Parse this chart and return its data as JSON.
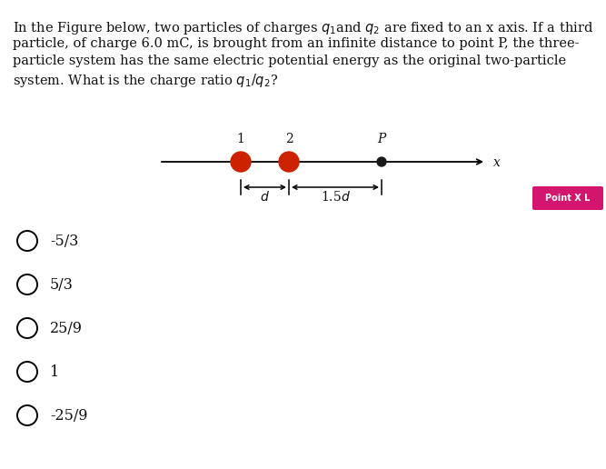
{
  "background_color": "#ffffff",
  "text_color": "#111111",
  "particle_color": "#cc2200",
  "pointP_color": "#1a1a1a",
  "badge_color": "#d4156e",
  "badge_text_color": "#ffffff",
  "badge_text": "Point X L",
  "choices": [
    "-5/3",
    "5/3",
    "25/9",
    "1",
    "-25/9"
  ],
  "fontsize_question": 10.5,
  "fontsize_choices": 11.5,
  "fontsize_labels": 10,
  "fontsize_badge": 7
}
